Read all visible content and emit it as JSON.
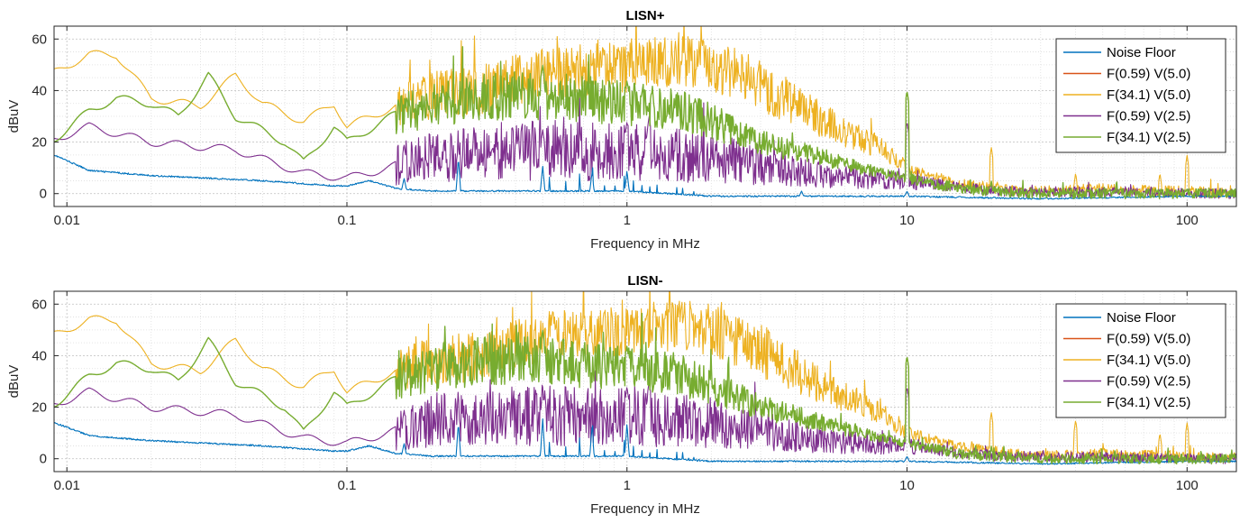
{
  "chart_data": [
    {
      "type": "line",
      "title": "LISN+",
      "xlabel": "Frequency in MHz",
      "ylabel": "dBuV",
      "xscale": "log",
      "xlim": [
        0.009,
        150
      ],
      "ylim": [
        -5,
        65
      ],
      "xticks": [
        0.01,
        0.1,
        1,
        10,
        100
      ],
      "xtick_labels": [
        "0.01",
        "0.1",
        "1",
        "10",
        "100"
      ],
      "yticks": [
        0,
        20,
        40,
        60
      ],
      "ytick_labels": [
        "0",
        "20",
        "40",
        "60"
      ],
      "grid": "major and minor, dotted",
      "legend_position": "top-right",
      "series": [
        {
          "name": "Noise Floor",
          "color": "#0072BD",
          "envelope": [
            [
              0.009,
              15
            ],
            [
              0.012,
              9
            ],
            [
              0.02,
              7
            ],
            [
              0.05,
              5
            ],
            [
              0.09,
              3
            ],
            [
              0.1,
              3
            ],
            [
              0.12,
              5
            ],
            [
              0.15,
              2
            ],
            [
              0.2,
              1
            ],
            [
              0.3,
              1
            ],
            [
              0.5,
              1
            ],
            [
              1,
              1
            ],
            [
              2,
              -1
            ],
            [
              5,
              -1
            ],
            [
              10,
              -1
            ],
            [
              30,
              -2
            ],
            [
              100,
              -1
            ],
            [
              150,
              -1
            ]
          ],
          "peaks": [
            [
              0.16,
              6
            ],
            [
              0.25,
              14
            ],
            [
              0.5,
              11
            ],
            [
              0.75,
              8
            ],
            [
              1.0,
              9
            ],
            [
              4.2,
              1
            ],
            [
              10,
              1
            ]
          ]
        },
        {
          "name": "F(0.59) V(5.0)",
          "color": "#D95319",
          "envelope": [
            [
              0.009,
              0
            ],
            [
              150,
              0
            ]
          ],
          "peaks": []
        },
        {
          "name": "F(34.1) V(5.0)",
          "color": "#EDB120",
          "envelope": [
            [
              0.009,
              47
            ],
            [
              0.012,
              54
            ],
            [
              0.015,
              54
            ],
            [
              0.02,
              37
            ],
            [
              0.03,
              34
            ],
            [
              0.04,
              46
            ],
            [
              0.05,
              35
            ],
            [
              0.07,
              28
            ],
            [
              0.09,
              35
            ],
            [
              0.1,
              26
            ],
            [
              0.15,
              34
            ],
            [
              0.2,
              38
            ],
            [
              0.3,
              40
            ],
            [
              0.5,
              47
            ],
            [
              1,
              49
            ],
            [
              1.5,
              52
            ],
            [
              2,
              50
            ],
            [
              3,
              42
            ],
            [
              5,
              28
            ],
            [
              8,
              18
            ],
            [
              10,
              10
            ],
            [
              15,
              4
            ],
            [
              20,
              2
            ],
            [
              30,
              1
            ],
            [
              50,
              2
            ],
            [
              100,
              1
            ],
            [
              150,
              0
            ]
          ],
          "peaks": [
            [
              1.6,
              57
            ],
            [
              10,
              40
            ],
            [
              20,
              18
            ],
            [
              40,
              8
            ],
            [
              80,
              8
            ],
            [
              100,
              15
            ]
          ]
        },
        {
          "name": "F(0.59) V(2.5)",
          "color": "#7E2F8E",
          "envelope": [
            [
              0.009,
              21
            ],
            [
              0.012,
              26
            ],
            [
              0.02,
              20
            ],
            [
              0.04,
              17
            ],
            [
              0.07,
              8
            ],
            [
              0.1,
              6
            ],
            [
              0.12,
              8
            ],
            [
              0.2,
              15
            ],
            [
              0.3,
              16
            ],
            [
              0.5,
              17
            ],
            [
              1,
              16
            ],
            [
              2,
              14
            ],
            [
              3,
              11
            ],
            [
              5,
              7
            ],
            [
              10,
              5
            ],
            [
              20,
              1
            ],
            [
              150,
              0
            ]
          ],
          "peaks": [
            [
              0.16,
              19
            ],
            [
              0.25,
              18
            ],
            [
              0.5,
              25
            ],
            [
              1,
              28
            ],
            [
              1.2,
              30
            ],
            [
              10,
              28
            ]
          ]
        },
        {
          "name": "F(34.1) V(2.5)",
          "color": "#77AC30",
          "envelope": [
            [
              0.009,
              21
            ],
            [
              0.012,
              32
            ],
            [
              0.015,
              37
            ],
            [
              0.02,
              35
            ],
            [
              0.025,
              30
            ],
            [
              0.032,
              46
            ],
            [
              0.04,
              30
            ],
            [
              0.06,
              20
            ],
            [
              0.07,
              12
            ],
            [
              0.09,
              26
            ],
            [
              0.1,
              20
            ],
            [
              0.15,
              31
            ],
            [
              0.2,
              34
            ],
            [
              0.3,
              38
            ],
            [
              0.5,
              38
            ],
            [
              1,
              35
            ],
            [
              1.5,
              33
            ],
            [
              2,
              28
            ],
            [
              3,
              20
            ],
            [
              5,
              14
            ],
            [
              8,
              8
            ],
            [
              10,
              6
            ],
            [
              15,
              2
            ],
            [
              20,
              1
            ],
            [
              30,
              0
            ],
            [
              100,
              0
            ],
            [
              150,
              0
            ]
          ],
          "peaks": [
            [
              0.5,
              50
            ],
            [
              1,
              44
            ],
            [
              10,
              40
            ],
            [
              20,
              5
            ]
          ]
        }
      ]
    },
    {
      "type": "line",
      "title": "LISN-",
      "xlabel": "Frequency in MHz",
      "ylabel": "dBuV",
      "xscale": "log",
      "xlim": [
        0.009,
        150
      ],
      "ylim": [
        -5,
        65
      ],
      "xticks": [
        0.01,
        0.1,
        1,
        10,
        100
      ],
      "xtick_labels": [
        "0.01",
        "0.1",
        "1",
        "10",
        "100"
      ],
      "yticks": [
        0,
        20,
        40,
        60
      ],
      "ytick_labels": [
        "0",
        "20",
        "40",
        "60"
      ],
      "grid": "major and minor, dotted",
      "legend_position": "top-right",
      "series": [
        {
          "name": "Noise Floor",
          "color": "#0072BD",
          "envelope": [
            [
              0.009,
              14
            ],
            [
              0.012,
              9
            ],
            [
              0.02,
              7
            ],
            [
              0.05,
              5
            ],
            [
              0.09,
              3
            ],
            [
              0.1,
              3
            ],
            [
              0.12,
              5
            ],
            [
              0.15,
              2
            ],
            [
              0.2,
              1
            ],
            [
              0.3,
              1
            ],
            [
              0.5,
              1
            ],
            [
              1,
              1
            ],
            [
              2,
              -1
            ],
            [
              5,
              -1
            ],
            [
              10,
              -1
            ],
            [
              30,
              -2
            ],
            [
              100,
              -1
            ],
            [
              150,
              -1
            ]
          ],
          "peaks": [
            [
              0.16,
              6
            ],
            [
              0.25,
              14
            ],
            [
              0.5,
              16
            ],
            [
              0.75,
              12
            ],
            [
              1.0,
              14
            ],
            [
              10,
              1
            ]
          ]
        },
        {
          "name": "F(0.59) V(5.0)",
          "color": "#D95319",
          "envelope": [
            [
              0.009,
              0
            ],
            [
              150,
              0
            ]
          ],
          "peaks": []
        },
        {
          "name": "F(34.1) V(5.0)",
          "color": "#EDB120",
          "envelope": [
            [
              0.009,
              48
            ],
            [
              0.012,
              54
            ],
            [
              0.015,
              54
            ],
            [
              0.02,
              37
            ],
            [
              0.03,
              34
            ],
            [
              0.04,
              46
            ],
            [
              0.05,
              35
            ],
            [
              0.07,
              28
            ],
            [
              0.09,
              35
            ],
            [
              0.1,
              26
            ],
            [
              0.15,
              34
            ],
            [
              0.2,
              38
            ],
            [
              0.3,
              40
            ],
            [
              0.5,
              47
            ],
            [
              1,
              49
            ],
            [
              1.5,
              52
            ],
            [
              2,
              50
            ],
            [
              3,
              42
            ],
            [
              5,
              28
            ],
            [
              8,
              18
            ],
            [
              10,
              10
            ],
            [
              15,
              5
            ],
            [
              20,
              3
            ],
            [
              30,
              1
            ],
            [
              50,
              2
            ],
            [
              100,
              1
            ],
            [
              150,
              0
            ]
          ],
          "peaks": [
            [
              1.6,
              57
            ],
            [
              10,
              40
            ],
            [
              20,
              18
            ],
            [
              40,
              15
            ],
            [
              80,
              10
            ],
            [
              100,
              14
            ]
          ]
        },
        {
          "name": "F(0.59) V(2.5)",
          "color": "#7E2F8E",
          "envelope": [
            [
              0.009,
              21
            ],
            [
              0.012,
              26
            ],
            [
              0.02,
              20
            ],
            [
              0.04,
              17
            ],
            [
              0.07,
              8
            ],
            [
              0.1,
              6
            ],
            [
              0.12,
              8
            ],
            [
              0.2,
              15
            ],
            [
              0.3,
              16
            ],
            [
              0.5,
              17
            ],
            [
              1,
              16
            ],
            [
              2,
              14
            ],
            [
              3,
              11
            ],
            [
              5,
              7
            ],
            [
              10,
              5
            ],
            [
              20,
              1
            ],
            [
              150,
              0
            ]
          ],
          "peaks": [
            [
              0.16,
              19
            ],
            [
              0.25,
              18
            ],
            [
              0.5,
              25
            ],
            [
              1,
              28
            ],
            [
              1.2,
              30
            ],
            [
              10,
              28
            ]
          ]
        },
        {
          "name": "F(34.1) V(2.5)",
          "color": "#77AC30",
          "envelope": [
            [
              0.009,
              21
            ],
            [
              0.012,
              32
            ],
            [
              0.015,
              37
            ],
            [
              0.02,
              35
            ],
            [
              0.025,
              30
            ],
            [
              0.032,
              46
            ],
            [
              0.04,
              30
            ],
            [
              0.06,
              20
            ],
            [
              0.07,
              10
            ],
            [
              0.09,
              26
            ],
            [
              0.1,
              20
            ],
            [
              0.15,
              31
            ],
            [
              0.2,
              34
            ],
            [
              0.3,
              38
            ],
            [
              0.5,
              38
            ],
            [
              1,
              35
            ],
            [
              1.5,
              33
            ],
            [
              2,
              28
            ],
            [
              3,
              20
            ],
            [
              5,
              14
            ],
            [
              8,
              8
            ],
            [
              10,
              6
            ],
            [
              15,
              2
            ],
            [
              20,
              1
            ],
            [
              30,
              0
            ],
            [
              100,
              0
            ],
            [
              150,
              0
            ]
          ],
          "peaks": [
            [
              0.5,
              50
            ],
            [
              1,
              44
            ],
            [
              10,
              40
            ],
            [
              20,
              5
            ]
          ]
        }
      ]
    }
  ]
}
